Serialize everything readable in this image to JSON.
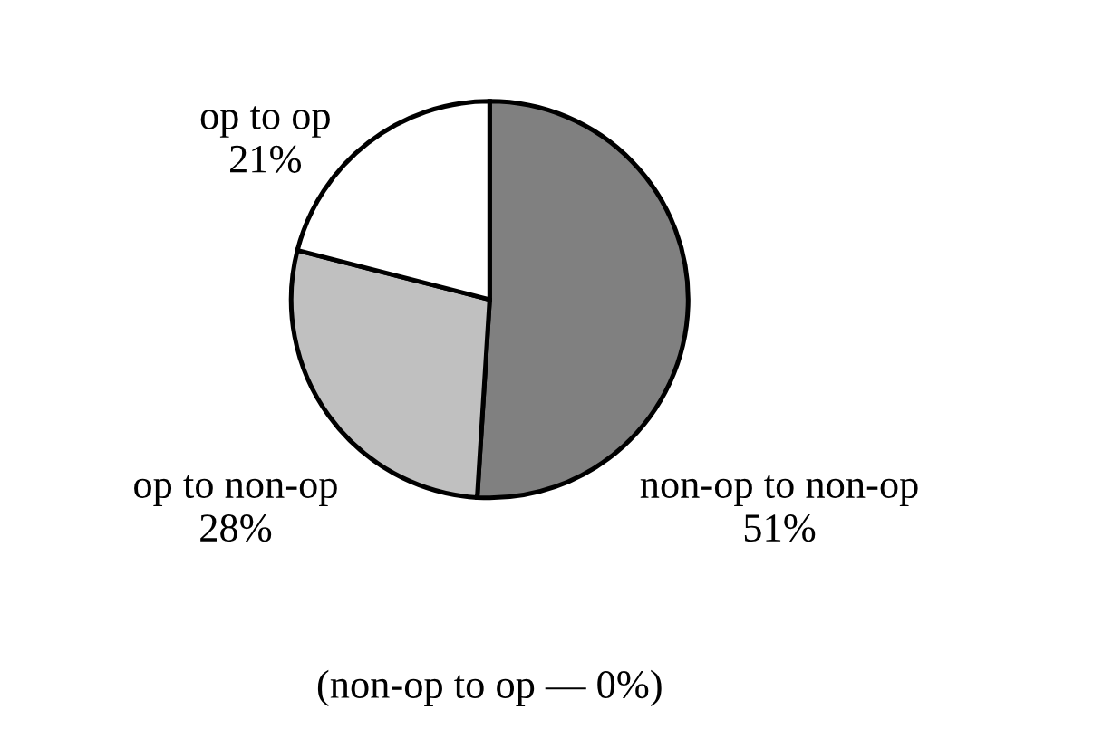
{
  "chart_data": {
    "type": "pie",
    "categories": [
      "non-op to non-op",
      "op to non-op",
      "op to op"
    ],
    "values": [
      51,
      28,
      21
    ],
    "value_labels": [
      "51%",
      "28%",
      "21%"
    ],
    "colors": [
      "#808080",
      "#c0c0c0",
      "#ffffff"
    ],
    "annotations": [
      "(non-op to op — 0%)"
    ]
  }
}
